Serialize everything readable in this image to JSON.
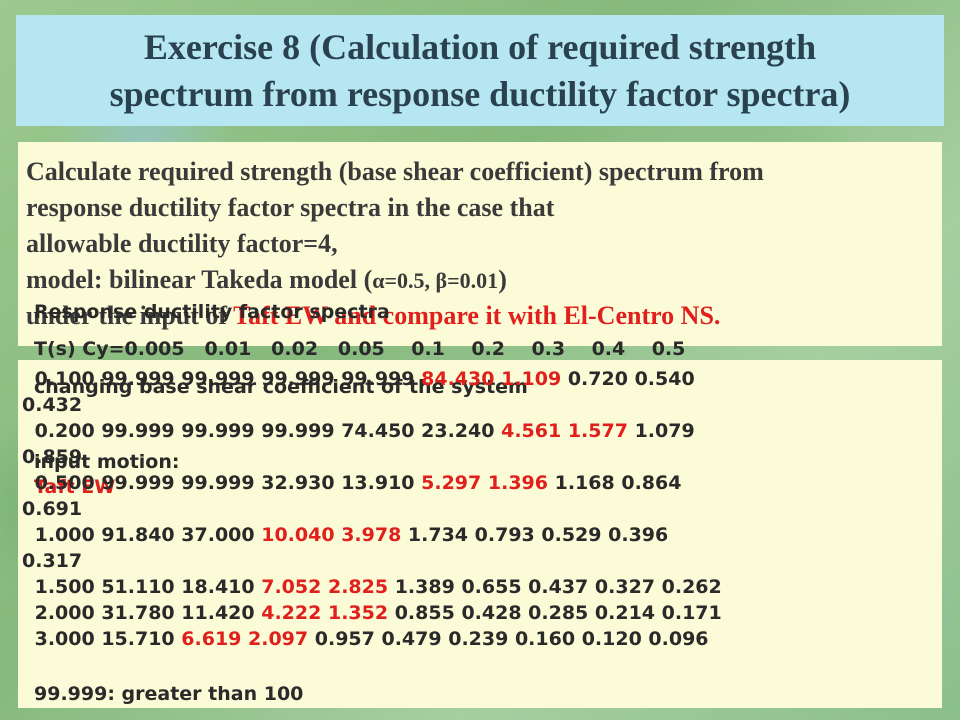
{
  "title": {
    "line1": "Exercise 8 (Calculation of required strength",
    "line2": "spectrum from response ductility factor spectra)"
  },
  "statement": {
    "line1": "Calculate required strength (base shear coefficient) spectrum from",
    "line2": "response ductility factor spectra in the case that",
    "line3": "allowable ductility factor=4,",
    "line4a": "model: bilinear Takeda model (",
    "line4_params": "α=0.5, β=0.01",
    "line4b": ")",
    "line5a": "under the input of ",
    "line5b": "Taft EW and compare it with El-Centro NS."
  },
  "table_caption": {
    "line1": "Response ductility factor spectra",
    "line2": "changing base shear coefficient of the system",
    "line3a": "input motion: ",
    "line3b": "Taft EW"
  },
  "table": {
    "header": "T(s) Cy=0.005   0.01   0.02   0.05    0.1    0.2    0.3    0.4    0.5",
    "rows": [
      {
        "T": "0.100",
        "values": [
          "99.999",
          "99.999",
          "99.999",
          "99.999",
          "84.430",
          "1.109",
          "0.720",
          "0.540",
          "0.432"
        ],
        "red": [
          4,
          5
        ]
      },
      {
        "T": "0.200",
        "values": [
          "99.999",
          "99.999",
          "99.999",
          "74.450",
          "23.240",
          "4.561",
          "1.577",
          "1.079",
          "0.859"
        ],
        "red": [
          5,
          6
        ]
      },
      {
        "T": "0.500",
        "values": [
          "99.999",
          "99.999",
          "32.930",
          "13.910",
          "5.297",
          "1.396",
          "1.168",
          "0.864",
          "0.691"
        ],
        "red": [
          4,
          5
        ]
      },
      {
        "T": "1.000",
        "values": [
          "91.840",
          "37.000",
          "10.040",
          "3.978",
          "1.734",
          "0.793",
          "0.529",
          "0.396",
          "0.317"
        ],
        "red": [
          2,
          3
        ]
      },
      {
        "T": "1.500",
        "values": [
          "51.110",
          "18.410",
          "7.052",
          "2.825",
          "1.389",
          "0.655",
          "0.437",
          "0.327",
          "0.262"
        ],
        "red": [
          2,
          3
        ]
      },
      {
        "T": "2.000",
        "values": [
          "31.780",
          "11.420",
          "4.222",
          "1.352",
          "0.855",
          "0.428",
          "0.285",
          "0.214",
          "0.171"
        ],
        "red": [
          2,
          3
        ]
      },
      {
        "T": "3.000",
        "values": [
          "15.710",
          "6.619",
          "2.097",
          "0.957",
          "0.479",
          "0.239",
          "0.160",
          "0.120",
          "0.096"
        ],
        "red": [
          1,
          2
        ]
      }
    ],
    "footnote": "99.999: greater than 100"
  },
  "colors": {
    "highlight": "#e0201c",
    "title_bg": "#b5e6f2",
    "box_bg": "#fbfbd8"
  }
}
